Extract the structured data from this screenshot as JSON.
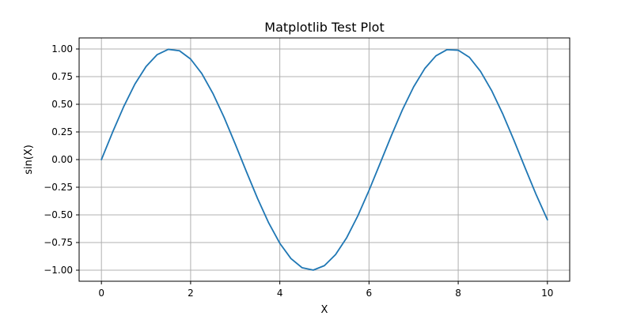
{
  "chart_data": {
    "type": "line",
    "title": "Matplotlib Test Plot",
    "xlabel": "X",
    "ylabel": "sin(X)",
    "xlim": [
      -0.5,
      10.5
    ],
    "ylim": [
      -1.1,
      1.1
    ],
    "grid": true,
    "x_ticks": [
      0,
      2,
      4,
      6,
      8,
      10
    ],
    "x_tick_labels": [
      "0",
      "2",
      "4",
      "6",
      "8",
      "10"
    ],
    "y_ticks": [
      1.0,
      0.75,
      0.5,
      0.25,
      0.0,
      -0.25,
      -0.5,
      -0.75,
      -1.0
    ],
    "y_tick_labels": [
      "1.00",
      "0.75",
      "0.50",
      "0.25",
      "0.00",
      "−0.25",
      "−0.50",
      "−0.75",
      "−1.00"
    ],
    "series": [
      {
        "color": "#1f77b4",
        "x": [
          0,
          0.25,
          0.5,
          0.75,
          1.0,
          1.25,
          1.5,
          1.75,
          2.0,
          2.25,
          2.5,
          2.75,
          3.0,
          3.25,
          3.5,
          3.75,
          4.0,
          4.25,
          4.5,
          4.75,
          5.0,
          5.25,
          5.5,
          5.75,
          6.0,
          6.25,
          6.5,
          6.75,
          7.0,
          7.25,
          7.5,
          7.75,
          8.0,
          8.25,
          8.5,
          8.75,
          9.0,
          9.25,
          9.5,
          9.75,
          10.0
        ],
        "y": [
          0.0,
          0.247,
          0.479,
          0.682,
          0.841,
          0.949,
          0.997,
          0.984,
          0.909,
          0.778,
          0.598,
          0.382,
          0.141,
          -0.108,
          -0.351,
          -0.572,
          -0.757,
          -0.895,
          -0.978,
          -0.999,
          -0.959,
          -0.859,
          -0.706,
          -0.508,
          -0.279,
          -0.033,
          0.215,
          0.451,
          0.657,
          0.823,
          0.938,
          0.994,
          0.989,
          0.925,
          0.798,
          0.624,
          0.412,
          0.174,
          -0.075,
          -0.319,
          -0.544
        ]
      }
    ]
  }
}
